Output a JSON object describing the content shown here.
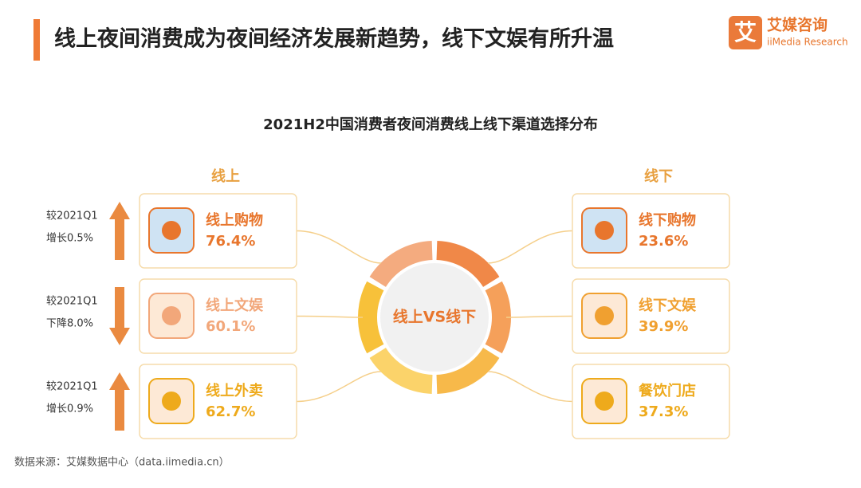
{
  "header": {
    "title": "线上夜间消费成为夜间经济发展新趋势，线下文娱有所升温",
    "brand": "艾媒咨询",
    "brand_en": "iiMedia Research"
  },
  "subtitle": "2021H2中国消费者夜间消费线上线下渠道选择分布",
  "online": {
    "heading": "线上",
    "items": [
      {
        "label": "线上购物",
        "value": "76.4%",
        "change": [
          "较2021Q1",
          "增长0.5%"
        ],
        "direction": "up",
        "color": "#e8762d"
      },
      {
        "label": "线上文娱",
        "value": "60.1%",
        "change": [
          "较2021Q1",
          "下降8.0%"
        ],
        "direction": "down",
        "color": "#f2a77a"
      },
      {
        "label": "线上外卖",
        "value": "62.7%",
        "change": [
          "较2021Q1",
          "增长0.9%"
        ],
        "direction": "up",
        "color": "#eeaa1c"
      }
    ]
  },
  "center": "线上VS线下",
  "offline": {
    "heading": "线下",
    "items": [
      {
        "label": "线下购物",
        "value": "23.6%",
        "color": "#e8762d"
      },
      {
        "label": "线下文娱",
        "value": "39.9%",
        "color": "#f0a030"
      },
      {
        "label": "餐饮门店",
        "value": "37.3%",
        "color": "#eeaa1c"
      }
    ]
  },
  "source": "数据来源：艾媒数据中心（data.iimedia.cn）"
}
